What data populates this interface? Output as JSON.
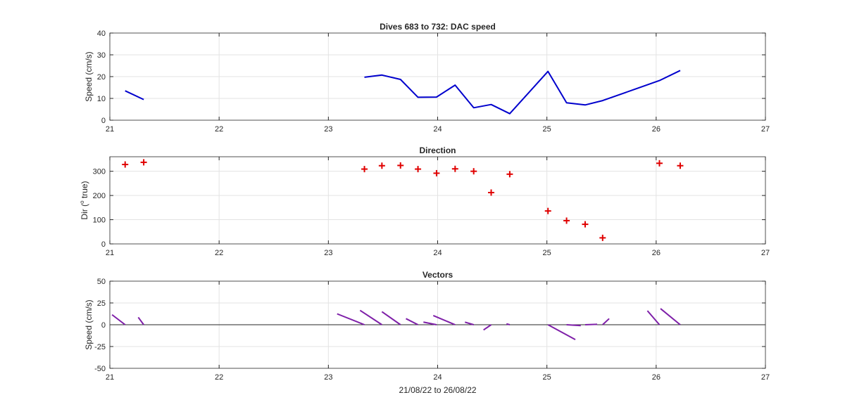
{
  "colors": {
    "speed_line": "#0000cd",
    "direction_marker": "#e00000",
    "vectors": "#7e1fa8",
    "grid": "#e3e3e3",
    "axes": "#262626"
  },
  "chart_data": [
    {
      "type": "line",
      "title": "Dives 683 to 732: DAC speed",
      "xlabel": "",
      "ylabel": "Speed (cm/s)",
      "xlim": [
        21,
        27
      ],
      "ylim": [
        0,
        40
      ],
      "x_ticks": [
        21,
        22,
        23,
        24,
        25,
        26,
        27
      ],
      "y_ticks": [
        0,
        10,
        20,
        30,
        40
      ],
      "grid": true,
      "series": [
        {
          "segments": [
            {
              "x": [
                21.14,
                21.31
              ],
              "y": [
                13.5,
                9.5
              ]
            },
            {
              "x": [
                23.33,
                23.49,
                23.66,
                23.82,
                23.99,
                24.16,
                24.33,
                24.49,
                24.66,
                25.01,
                25.18,
                25.35,
                25.51,
                26.03,
                26.22
              ],
              "y": [
                19.7,
                20.7,
                18.7,
                10.5,
                10.6,
                16.1,
                5.7,
                7.2,
                3.0,
                22.4,
                8.0,
                7.0,
                9.0,
                18.2,
                22.8
              ]
            }
          ]
        }
      ]
    },
    {
      "type": "scatter",
      "title": "Direction",
      "xlabel": "",
      "ylabel": "Dir (°true)",
      "ylabel_parts": {
        "main": "Dir (",
        "sup": "o",
        "rest": " true)"
      },
      "xlim": [
        21,
        27
      ],
      "ylim": [
        0,
        360
      ],
      "x_ticks": [
        21,
        22,
        23,
        24,
        25,
        26,
        27
      ],
      "y_ticks": [
        0,
        100,
        200,
        300
      ],
      "grid": true,
      "marker": "+",
      "x": [
        21.14,
        21.31,
        23.33,
        23.49,
        23.66,
        23.82,
        23.99,
        24.16,
        24.33,
        24.49,
        24.66,
        25.01,
        25.18,
        25.35,
        25.51,
        26.03,
        26.22
      ],
      "y": [
        328,
        337,
        309,
        323,
        324,
        309,
        292,
        310,
        300,
        212,
        288,
        136,
        96,
        81,
        25,
        333,
        323
      ]
    },
    {
      "type": "quiver",
      "title": "Vectors",
      "xlabel": "21/08/22 to 26/08/22",
      "ylabel": "Speed (cm/s)",
      "xlim": [
        21,
        27
      ],
      "ylim": [
        -50,
        50
      ],
      "x_ticks": [
        21,
        22,
        23,
        24,
        25,
        26,
        27
      ],
      "y_ticks": [
        -50,
        -25,
        0,
        25,
        50
      ],
      "grid": true,
      "vectors": [
        {
          "x0": 21.14,
          "x1": 21.02,
          "y1": 11.5
        },
        {
          "x0": 21.31,
          "x1": 21.26,
          "y1": 8.5
        },
        {
          "x0": 23.33,
          "x1": 23.08,
          "y1": 12.5
        },
        {
          "x0": 23.49,
          "x1": 23.29,
          "y1": 16.5
        },
        {
          "x0": 23.66,
          "x1": 23.49,
          "y1": 15.0
        },
        {
          "x0": 23.82,
          "x1": 23.71,
          "y1": 7.0
        },
        {
          "x0": 23.99,
          "x1": 23.87,
          "y1": 3.0
        },
        {
          "x0": 24.16,
          "x1": 23.96,
          "y1": 10.5
        },
        {
          "x0": 24.33,
          "x1": 24.25,
          "y1": 3.0
        },
        {
          "x0": 24.49,
          "x1": 24.42,
          "y1": -6.0
        },
        {
          "x0": 24.66,
          "x1": 24.63,
          "y1": 1.0
        },
        {
          "x0": 25.01,
          "x1": 25.26,
          "y1": -17.0
        },
        {
          "x0": 25.18,
          "x1": 25.31,
          "y1": -1.0
        },
        {
          "x0": 25.35,
          "x1": 25.46,
          "y1": 0.5
        },
        {
          "x0": 25.51,
          "x1": 25.57,
          "y1": 7.0
        },
        {
          "x0": 26.03,
          "x1": 25.92,
          "y1": 16.0
        },
        {
          "x0": 26.22,
          "x1": 26.04,
          "y1": 18.5
        }
      ]
    }
  ]
}
